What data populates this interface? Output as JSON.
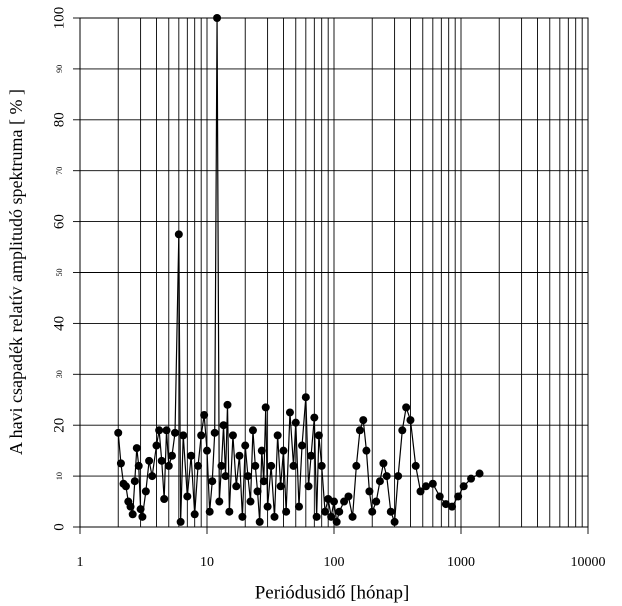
{
  "chart_data": {
    "type": "scatter",
    "x_label": "Periódusidő [hónap]",
    "y_label": "A havi csapadék relatív amplitudó spektruma [ % ]",
    "xlim": [
      1,
      10000
    ],
    "ylim": [
      0,
      100
    ],
    "log_x": true,
    "grid": true,
    "xticks": [
      1,
      10,
      100,
      1000,
      10000
    ],
    "xgrid_minor": [
      2,
      3,
      4,
      5,
      6,
      7,
      8,
      9,
      20,
      30,
      40,
      50,
      60,
      70,
      80,
      90,
      200,
      300,
      400,
      500,
      600,
      700,
      800,
      900,
      2000,
      3000,
      4000,
      5000,
      6000,
      7000,
      8000,
      9000
    ],
    "yticks": [
      0,
      10,
      20,
      30,
      40,
      50,
      60,
      70,
      80,
      90,
      100
    ],
    "series": [
      {
        "color": "#000000",
        "x": [
          2,
          2.1,
          2.2,
          2.3,
          2.4,
          2.5,
          2.6,
          2.7,
          2.8,
          2.9,
          3,
          3.1,
          3.3,
          3.5,
          3.7,
          4,
          4.2,
          4.4,
          4.6,
          4.8,
          5,
          5.3,
          5.6,
          6,
          6.2,
          6.5,
          7,
          7.5,
          8,
          8.5,
          9,
          9.5,
          10,
          10.5,
          11,
          11.5,
          12,
          12.5,
          13,
          13.5,
          14,
          14.5,
          15,
          16,
          17,
          18,
          19,
          20,
          21,
          22,
          23,
          24,
          25,
          26,
          27,
          28,
          29,
          30,
          32,
          34,
          36,
          38,
          40,
          42,
          45,
          48,
          50,
          53,
          56,
          60,
          63,
          66,
          70,
          73,
          76,
          80,
          85,
          90,
          95,
          100,
          105,
          110,
          120,
          130,
          140,
          150,
          160,
          170,
          180,
          190,
          200,
          215,
          230,
          245,
          260,
          280,
          300,
          320,
          345,
          370,
          400,
          440,
          480,
          530,
          600,
          680,
          760,
          850,
          950,
          1050,
          1200,
          1400
        ],
        "values": [
          18.5,
          12.5,
          8.5,
          8,
          5,
          4,
          2.5,
          9,
          15.5,
          12,
          3.5,
          2,
          7,
          13,
          10,
          16,
          19,
          13,
          5.5,
          19,
          12,
          14,
          18.5,
          57.5,
          1,
          18,
          6,
          14,
          2.5,
          12,
          18,
          22,
          15,
          3,
          9,
          18.5,
          100,
          5,
          12,
          20,
          10,
          24,
          3,
          18,
          8,
          14,
          2,
          16,
          10,
          5,
          19,
          12,
          7,
          1,
          15,
          9,
          23.5,
          4,
          12,
          2,
          18,
          8,
          15,
          3,
          22.5,
          12,
          20.5,
          4,
          16,
          25.5,
          8,
          14,
          21.5,
          2,
          18,
          12,
          3,
          5.5,
          2,
          5,
          1,
          3,
          5,
          6,
          2,
          12,
          19,
          21,
          15,
          7,
          3,
          5,
          9,
          12.5,
          10,
          3,
          1,
          10,
          19,
          23.5,
          21,
          12,
          7,
          8,
          8.5,
          6,
          4.5,
          4,
          6,
          8,
          9.5,
          10.5
        ]
      }
    ]
  }
}
